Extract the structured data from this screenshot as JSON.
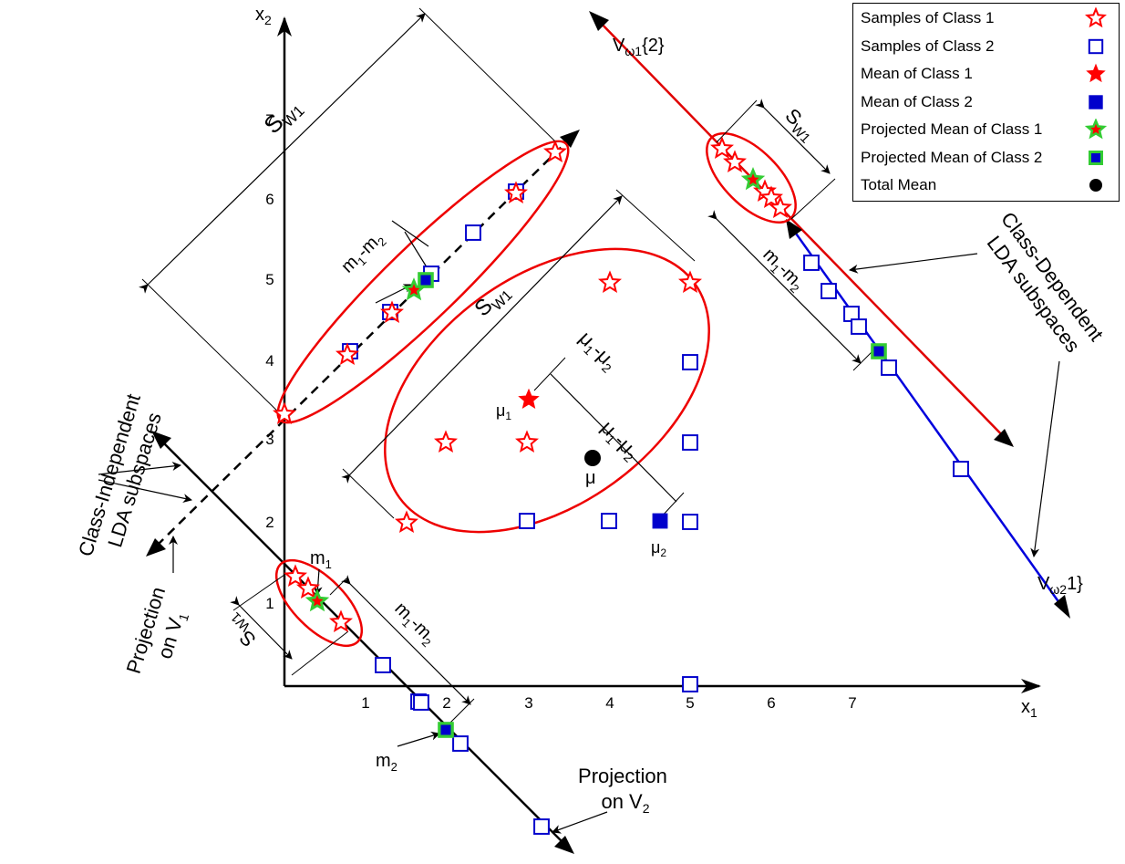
{
  "axes": {
    "x_label": "x",
    "x_sub": "1",
    "y_label": "x",
    "y_sub": "2",
    "x_ticks": [
      "1",
      "2",
      "3",
      "4",
      "5",
      "6",
      "7"
    ],
    "y_ticks": [
      "1",
      "2",
      "3",
      "4",
      "5",
      "6",
      "7"
    ]
  },
  "legend": [
    {
      "label": "Samples of Class 1",
      "symbol": "open-star-red"
    },
    {
      "label": "Samples of Class 2",
      "symbol": "open-square-blue"
    },
    {
      "label": "Mean of Class 1",
      "symbol": "filled-star-red"
    },
    {
      "label": "Mean of Class 2",
      "symbol": "filled-square-blue"
    },
    {
      "label": "Projected Mean of Class 1",
      "symbol": "green-star-red"
    },
    {
      "label": "Projected Mean of Class 2",
      "symbol": "green-square-blue"
    },
    {
      "label": "Total Mean",
      "symbol": "filled-circle-black"
    }
  ],
  "labels": {
    "sw": "S",
    "sw_sub": "W1",
    "m1m2": {
      "m": "m",
      "one": "1",
      "dash": "-m",
      "two": "2"
    },
    "mu_diff": {
      "mu": "μ",
      "one": "1",
      "dash": "-μ",
      "two": "2"
    },
    "mu1": {
      "mu": "μ",
      "sub": "1"
    },
    "mu2": {
      "mu": "μ",
      "sub": "2"
    },
    "mu": "μ",
    "m1": {
      "m": "m",
      "sub": "1"
    },
    "m2": {
      "m": "m",
      "sub": "2"
    },
    "v_omega1": {
      "v": "V",
      "sub": "ω1",
      "suffix": "{2}"
    },
    "v_omega2": {
      "v": "V",
      "sub": "ω2",
      "suffix": "1}"
    },
    "class_dependent": [
      "Class-Dependent",
      "LDA subspaces"
    ],
    "class_independent": [
      "Class-Independent",
      "LDA subspaces"
    ],
    "projection_v1": {
      "line1": "Projection",
      "line2": "on V",
      "sub": "1"
    },
    "projection_v2": {
      "line1": "Projection",
      "line2": "on V",
      "sub": "2"
    }
  },
  "colors": {
    "class1": "#ff0000",
    "class2": "#0000cc",
    "projected_mean_outline": "#33cc33",
    "total_mean": "#000000",
    "axes": "#000000"
  }
}
